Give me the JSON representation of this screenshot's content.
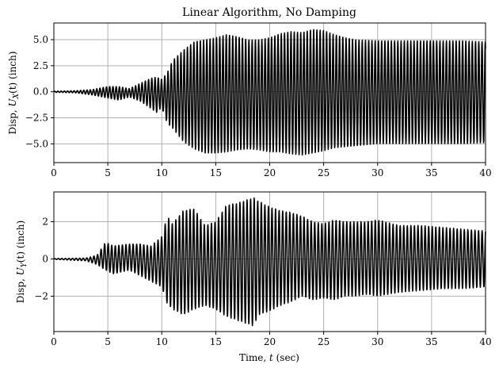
{
  "chart_data": [
    {
      "type": "line",
      "title": "Linear Algorithm, No Damping",
      "xlabel": "",
      "ylabel": "Disp, U_X(t) (inch)",
      "xlim": [
        0,
        40
      ],
      "ylim": [
        -6.8,
        6.6
      ],
      "xticks": [
        0,
        5,
        10,
        15,
        20,
        25,
        30,
        35,
        40
      ],
      "xtick_labels": [
        "0",
        "5",
        "10",
        "15",
        "20",
        "25",
        "30",
        "35",
        "40"
      ],
      "yticks": [
        5.0,
        2.5,
        0.0,
        -2.5,
        -5.0
      ],
      "ytick_labels": [
        "5.0",
        "2.5",
        "0.0",
        "−2.5",
        "−5.0"
      ],
      "grid": true,
      "series": [
        {
          "name": "U_X(t)",
          "color": "#000000",
          "envelope": {
            "t": [
              0,
              2,
              3.5,
              5,
              6,
              7,
              8,
              9,
              9.5,
              10,
              10.5,
              11,
              12,
              13,
              14,
              15,
              16,
              17,
              18,
              19,
              20,
              21,
              22,
              23,
              24,
              25,
              26,
              27,
              28,
              30,
              32,
              35,
              38,
              40
            ],
            "upper": [
              0.05,
              0.1,
              0.2,
              0.5,
              0.5,
              0.3,
              0.8,
              1.3,
              1.4,
              1.2,
              1.8,
              3.0,
              4.0,
              4.8,
              5.0,
              5.2,
              5.5,
              5.3,
              5.0,
              5.0,
              5.2,
              5.6,
              5.8,
              5.7,
              6.0,
              5.9,
              5.5,
              5.2,
              5.0,
              4.9,
              4.9,
              4.9,
              4.9,
              4.8
            ],
            "lower": [
              -0.05,
              -0.1,
              -0.3,
              -0.6,
              -0.8,
              -0.5,
              -0.9,
              -1.6,
              -2.0,
              -1.5,
              -3.0,
              -3.5,
              -4.8,
              -5.5,
              -5.9,
              -5.9,
              -5.8,
              -5.6,
              -5.5,
              -5.6,
              -5.8,
              -5.8,
              -6.0,
              -6.1,
              -5.9,
              -5.7,
              -5.4,
              -5.3,
              -5.2,
              -5.0,
              -5.0,
              -5.0,
              -5.0,
              -4.9
            ]
          },
          "dominant_period_sec": 0.3
        }
      ]
    },
    {
      "type": "line",
      "title": "",
      "xlabel": "Time, t (sec)",
      "ylabel": "Disp, U_Y(t) (inch)",
      "xlim": [
        0,
        40
      ],
      "ylim": [
        -3.9,
        3.6
      ],
      "xticks": [
        0,
        5,
        10,
        15,
        20,
        25,
        30,
        35,
        40
      ],
      "xtick_labels": [
        "0",
        "5",
        "10",
        "15",
        "20",
        "25",
        "30",
        "35",
        "40"
      ],
      "yticks": [
        2,
        0,
        -2
      ],
      "ytick_labels": [
        "2",
        "0",
        "−2"
      ],
      "grid": true,
      "series": [
        {
          "name": "U_Y(t)",
          "color": "#000000",
          "envelope": {
            "t": [
              0,
              3,
              4,
              4.8,
              5.5,
              7,
              8,
              9,
              10,
              10.5,
              11,
              12,
              13,
              14,
              15,
              16,
              17,
              18,
              18.5,
              19,
              20,
              21,
              22,
              23,
              24,
              25,
              26,
              27,
              28,
              29,
              30,
              32,
              34,
              36,
              38,
              40
            ],
            "upper": [
              0.02,
              0.05,
              0.2,
              0.9,
              0.7,
              0.8,
              0.8,
              0.7,
              1.2,
              2.3,
              1.9,
              2.6,
              2.7,
              1.8,
              2.0,
              2.9,
              3.0,
              3.2,
              3.3,
              3.1,
              2.8,
              2.6,
              2.5,
              2.3,
              2.0,
              1.9,
              2.1,
              2.0,
              2.0,
              2.0,
              2.1,
              1.8,
              1.8,
              1.7,
              1.6,
              1.5
            ],
            "lower": [
              -0.02,
              -0.1,
              -0.3,
              -0.6,
              -0.8,
              -0.6,
              -0.9,
              -1.2,
              -1.5,
              -2.4,
              -2.7,
              -3.0,
              -2.7,
              -2.5,
              -2.7,
              -3.1,
              -3.3,
              -3.5,
              -3.6,
              -3.0,
              -2.8,
              -2.5,
              -2.3,
              -2.0,
              -2.2,
              -2.1,
              -2.2,
              -2.0,
              -2.0,
              -1.9,
              -2.0,
              -1.8,
              -1.7,
              -1.6,
              -1.6,
              -1.5
            ]
          },
          "dominant_period_sec": 0.33
        }
      ]
    }
  ],
  "figure": {
    "title": "Linear Algorithm, No Damping",
    "top_ylabel_prefix": "Disp, ",
    "top_ylabel_var": "U",
    "top_ylabel_sub": "X",
    "top_ylabel_suffix": "(t) (inch)",
    "bottom_ylabel_prefix": "Disp, ",
    "bottom_ylabel_var": "U",
    "bottom_ylabel_sub": "Y",
    "bottom_ylabel_suffix": "(t) (inch)",
    "xlabel_prefix": "Time, ",
    "xlabel_var": "t",
    "xlabel_suffix": " (sec)",
    "line_color": "#000000",
    "grid_color": "#b0b0b0"
  }
}
